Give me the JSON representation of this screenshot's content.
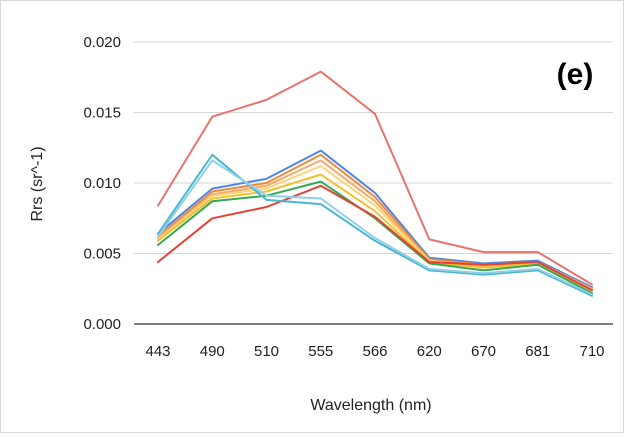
{
  "chart_data": {
    "type": "line",
    "title": "",
    "panel_label": "(e)",
    "xlabel": "Wavelength (nm)",
    "ylabel": "Rrs (sr^-1)",
    "categories": [
      "443",
      "490",
      "510",
      "555",
      "566",
      "620",
      "670",
      "681",
      "710"
    ],
    "yticks": [
      "0.000",
      "0.005",
      "0.010",
      "0.015",
      "0.020"
    ],
    "ylim": [
      0,
      0.02
    ],
    "grid": true,
    "legend": "none",
    "series": [
      {
        "color": "#e8736c",
        "values": [
          0.0084,
          0.0147,
          0.0159,
          0.0179,
          0.0149,
          0.006,
          0.0051,
          0.0051,
          0.0028
        ]
      },
      {
        "color": "#4f86e4",
        "values": [
          0.0064,
          0.0096,
          0.0103,
          0.0123,
          0.0093,
          0.0047,
          0.0043,
          0.0045,
          0.0026
        ]
      },
      {
        "color": "#ee8b3a",
        "values": [
          0.0062,
          0.0094,
          0.01,
          0.012,
          0.009,
          0.0046,
          0.0042,
          0.0044,
          0.0025
        ]
      },
      {
        "color": "#f6a96a",
        "values": [
          0.0061,
          0.0092,
          0.0098,
          0.0116,
          0.0087,
          0.0045,
          0.0041,
          0.0044,
          0.0025
        ]
      },
      {
        "color": "#fbd47a",
        "values": [
          0.006,
          0.0091,
          0.0096,
          0.0112,
          0.0084,
          0.0045,
          0.004,
          0.0043,
          0.0024
        ]
      },
      {
        "color": "#f3c12e",
        "values": [
          0.0059,
          0.0089,
          0.0094,
          0.0106,
          0.008,
          0.0044,
          0.004,
          0.0043,
          0.0024
        ]
      },
      {
        "color": "#34a853",
        "values": [
          0.0056,
          0.0087,
          0.0091,
          0.0101,
          0.0075,
          0.0043,
          0.0038,
          0.0042,
          0.0022
        ]
      },
      {
        "color": "#e34234",
        "values": [
          0.0044,
          0.0075,
          0.0083,
          0.0098,
          0.0076,
          0.0044,
          0.0042,
          0.0044,
          0.0024
        ]
      },
      {
        "color": "#4ab6d3",
        "values": [
          0.0064,
          0.012,
          0.0088,
          0.0085,
          0.0059,
          0.0038,
          0.0035,
          0.0038,
          0.002
        ]
      },
      {
        "color": "#8fd0e6",
        "values": [
          0.0062,
          0.0116,
          0.0091,
          0.0089,
          0.0061,
          0.0039,
          0.0036,
          0.0039,
          0.0021
        ]
      }
    ]
  }
}
